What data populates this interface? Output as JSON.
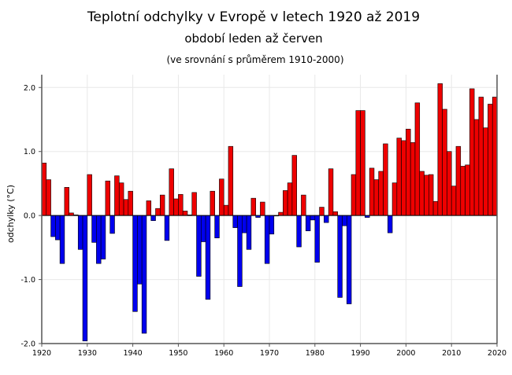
{
  "chart_data": {
    "type": "bar",
    "title": "Teplotní odchylky v Evropě v letech 1920 až 2019",
    "subtitle": "období leden až červen",
    "note": "(ve srovnání s průměrem 1910-2000)",
    "xlabel": "",
    "ylabel": "odchylky (°C)",
    "xlim": [
      1920,
      2020
    ],
    "ylim": [
      -2.0,
      2.2
    ],
    "xticks": [
      1920,
      1930,
      1940,
      1950,
      1960,
      1970,
      1980,
      1990,
      2000,
      2010,
      2020
    ],
    "xtick_labels": [
      "1920",
      "1930",
      "1940",
      "1950",
      "1960",
      "1970",
      "1980",
      "1990",
      "2000",
      "2010",
      "2020"
    ],
    "yticks": [
      -2.0,
      -1.0,
      0.0,
      1.0,
      2.0
    ],
    "ytick_labels": [
      "-2.0",
      "-1.0",
      "0.0",
      "1.0",
      "2.0"
    ],
    "grid": true,
    "positive_color": "#ee0000",
    "negative_color": "#0000ee",
    "x": [
      1920,
      1921,
      1922,
      1923,
      1924,
      1925,
      1926,
      1927,
      1928,
      1929,
      1930,
      1931,
      1932,
      1933,
      1934,
      1935,
      1936,
      1937,
      1938,
      1939,
      1940,
      1941,
      1942,
      1943,
      1944,
      1945,
      1946,
      1947,
      1948,
      1949,
      1950,
      1951,
      1952,
      1953,
      1954,
      1955,
      1956,
      1957,
      1958,
      1959,
      1960,
      1961,
      1962,
      1963,
      1964,
      1965,
      1966,
      1967,
      1968,
      1969,
      1970,
      1971,
      1972,
      1973,
      1974,
      1975,
      1976,
      1977,
      1978,
      1979,
      1980,
      1981,
      1982,
      1983,
      1984,
      1985,
      1986,
      1987,
      1988,
      1989,
      1990,
      1991,
      1992,
      1993,
      1994,
      1995,
      1996,
      1997,
      1998,
      1999,
      2000,
      2001,
      2002,
      2003,
      2004,
      2005,
      2006,
      2007,
      2008,
      2009,
      2010,
      2011,
      2012,
      2013,
      2014,
      2015,
      2016,
      2017,
      2018,
      2019
    ],
    "values": [
      0.82,
      0.56,
      -0.33,
      -0.38,
      -0.75,
      0.44,
      0.04,
      0.01,
      -0.53,
      -1.96,
      0.64,
      -0.42,
      -0.75,
      -0.68,
      0.54,
      -0.28,
      0.62,
      0.51,
      0.25,
      0.38,
      -1.5,
      -1.07,
      -1.84,
      0.23,
      -0.08,
      0.11,
      0.32,
      -0.39,
      0.73,
      0.26,
      0.33,
      0.07,
      0.01,
      0.36,
      -0.95,
      -0.41,
      -1.31,
      0.38,
      -0.35,
      0.57,
      0.16,
      1.08,
      -0.19,
      -1.11,
      -0.27,
      -0.53,
      0.27,
      -0.03,
      0.21,
      -0.75,
      -0.29,
      0.0,
      0.05,
      0.39,
      0.51,
      0.94,
      -0.49,
      0.32,
      -0.24,
      -0.07,
      -0.73,
      0.13,
      -0.11,
      0.73,
      0.06,
      -1.28,
      -0.16,
      -1.38,
      0.64,
      1.64,
      1.64,
      -0.03,
      0.74,
      0.56,
      0.69,
      1.12,
      -0.27,
      0.51,
      1.21,
      1.17,
      1.35,
      1.14,
      1.76,
      0.69,
      0.63,
      0.64,
      0.22,
      2.06,
      1.66,
      1.0,
      0.46,
      1.08,
      0.77,
      0.79,
      1.98,
      1.5,
      1.85,
      1.37,
      1.74,
      1.85
    ]
  }
}
